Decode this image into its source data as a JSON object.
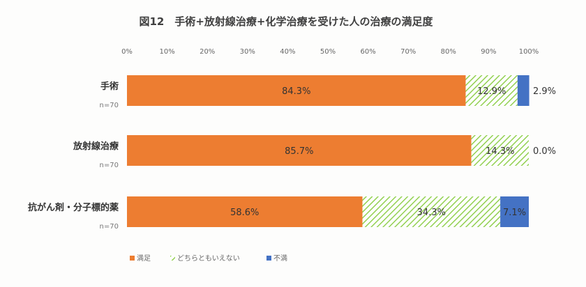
{
  "chart_data": {
    "type": "bar",
    "orientation": "horizontal",
    "stacked": true,
    "percent_axis": true,
    "title": "図12　手術+放射線治療+化学治療を受けた人の治療の満足度",
    "xlim": [
      0,
      100
    ],
    "xticks": [
      0,
      10,
      20,
      30,
      40,
      50,
      60,
      70,
      80,
      90,
      100
    ],
    "tick_suffix": "%",
    "categories": [
      "手術",
      "放射線治療",
      "抗がん剤・分子標的薬"
    ],
    "category_n": [
      "n=70",
      "n=70",
      "n=70"
    ],
    "series": [
      {
        "name": "満足",
        "color": "#ed7d31",
        "pattern": "solid",
        "values": [
          84.3,
          85.7,
          58.6
        ],
        "labels": [
          "84.3%",
          "85.7%",
          "58.6%"
        ]
      },
      {
        "name": "どちらともいえない",
        "color": "#92d050",
        "pattern": "diagonal-hatch",
        "values": [
          12.9,
          14.3,
          34.3
        ],
        "labels": [
          "12.9%",
          "14.3%",
          "34.3%"
        ]
      },
      {
        "name": "不満",
        "color": "#4472c4",
        "pattern": "solid",
        "values": [
          2.9,
          0.0,
          7.1
        ],
        "labels": [
          "2.9%",
          "0.0%",
          "7.1%"
        ]
      }
    ],
    "legend_position": "bottom-left",
    "grid": false
  }
}
